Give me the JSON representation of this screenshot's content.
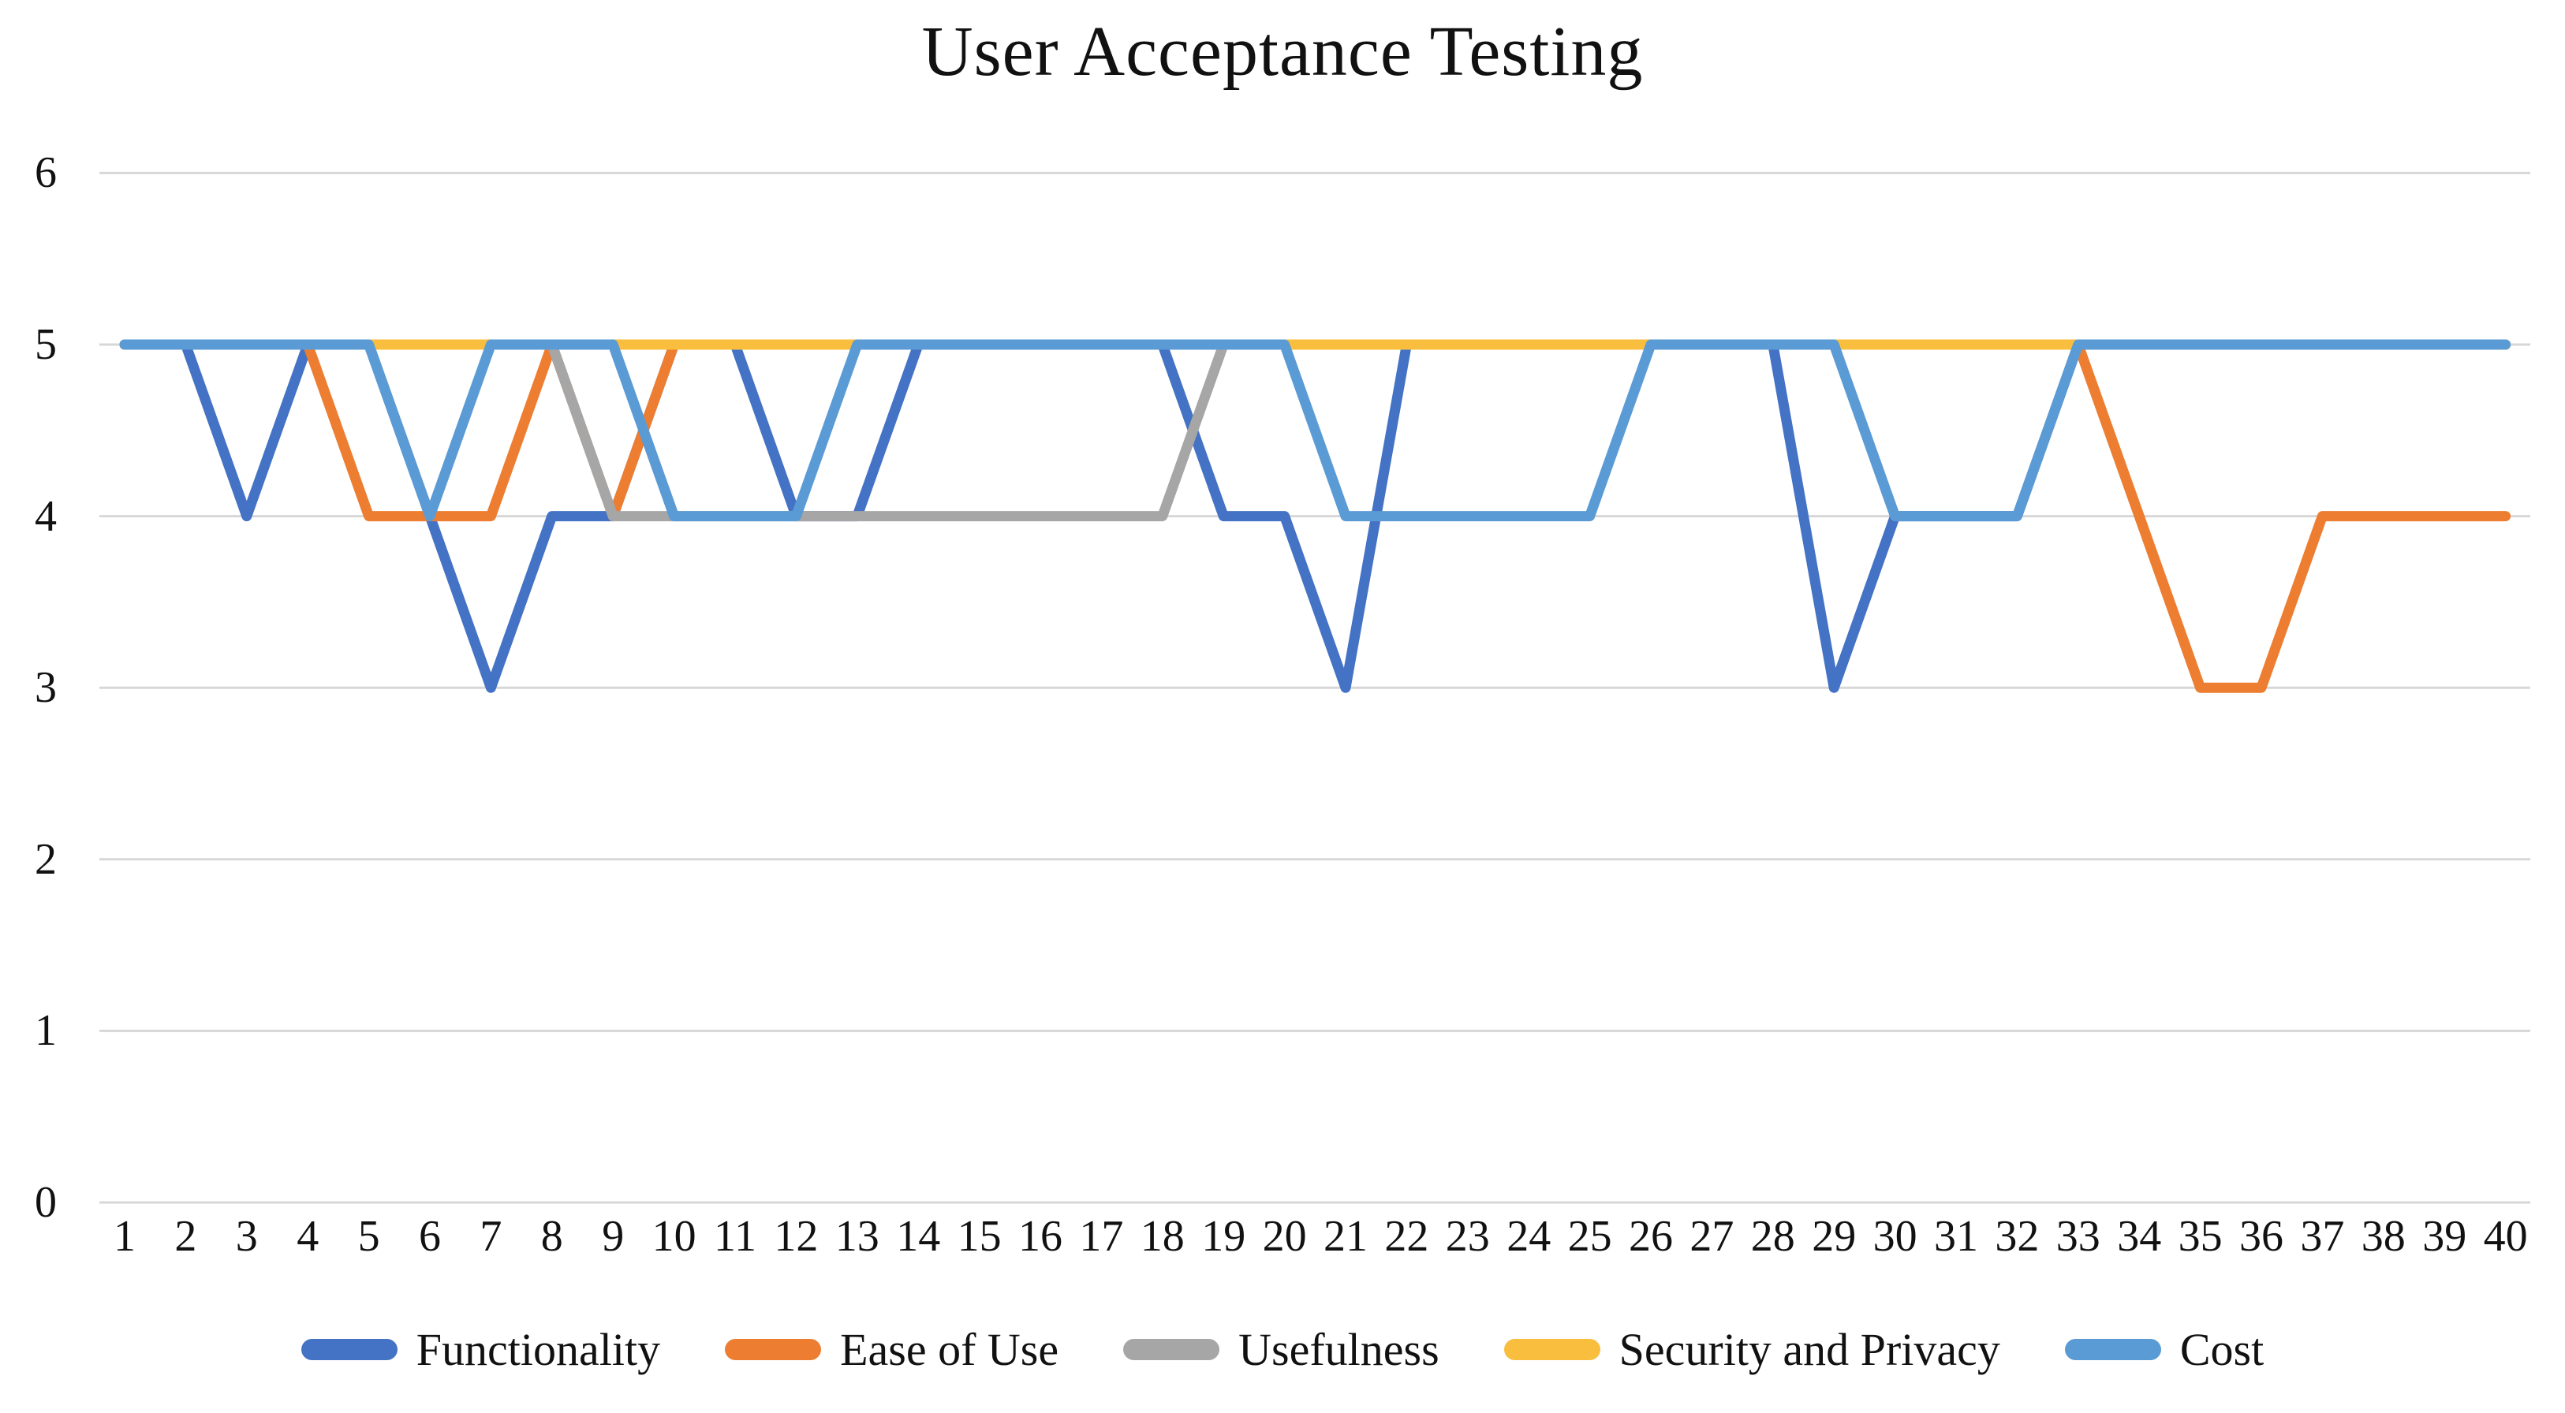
{
  "title": {
    "text": "User Acceptance Testing"
  },
  "y_axis": {
    "tick_labels": [
      "6",
      "5",
      "4",
      "3",
      "2",
      "1",
      "0"
    ],
    "tick_values": [
      6,
      5,
      4,
      3,
      2,
      1,
      0
    ],
    "range": [
      0,
      6
    ]
  },
  "x_axis": {
    "tick_labels": [
      "1",
      "2",
      "3",
      "4",
      "5",
      "6",
      "7",
      "8",
      "9",
      "10",
      "11",
      "12",
      "13",
      "14",
      "15",
      "16",
      "17",
      "18",
      "19",
      "20",
      "21",
      "22",
      "23",
      "24",
      "25",
      "26",
      "27",
      "28",
      "29",
      "30",
      "31",
      "32",
      "33",
      "34",
      "35",
      "36",
      "37",
      "38",
      "39",
      "40"
    ]
  },
  "colors": {
    "gridline": "#D7D7D7",
    "text": "#111111",
    "background": "#FFFFFF"
  },
  "chart_data": {
    "type": "line",
    "title": "User Acceptance Testing",
    "x": [
      1,
      2,
      3,
      4,
      5,
      6,
      7,
      8,
      9,
      10,
      11,
      12,
      13,
      14,
      15,
      16,
      17,
      18,
      19,
      20,
      21,
      22,
      23,
      24,
      25,
      26,
      27,
      28,
      29,
      30,
      31,
      32,
      33,
      34,
      35,
      36,
      37,
      38,
      39,
      40
    ],
    "xlabel": "",
    "ylabel": "",
    "ylim": [
      0,
      6
    ],
    "grid": "horizontal",
    "legend_position": "bottom",
    "series": [
      {
        "name": "Functionality",
        "color": "#4472C4",
        "values": [
          5,
          5,
          4,
          5,
          5,
          4,
          3,
          4,
          4,
          5,
          5,
          4,
          4,
          5,
          5,
          5,
          5,
          5,
          4,
          4,
          3,
          5,
          5,
          5,
          5,
          5,
          5,
          5,
          3,
          4,
          4,
          4,
          5,
          5,
          5,
          5,
          5,
          5,
          5,
          5
        ]
      },
      {
        "name": "Ease of Use",
        "color": "#ED7D31",
        "values": [
          5,
          5,
          5,
          5,
          4,
          4,
          4,
          5,
          4,
          5,
          5,
          5,
          5,
          5,
          5,
          5,
          5,
          5,
          5,
          5,
          5,
          5,
          5,
          5,
          5,
          5,
          5,
          5,
          5,
          5,
          5,
          5,
          5,
          4,
          3,
          3,
          4,
          4,
          4,
          4
        ]
      },
      {
        "name": "Usefulness",
        "color": "#A6A6A6",
        "values": [
          5,
          5,
          5,
          5,
          5,
          5,
          5,
          5,
          4,
          4,
          4,
          4,
          4,
          4,
          4,
          4,
          4,
          4,
          5,
          5,
          5,
          5,
          5,
          5,
          5,
          5,
          5,
          5,
          5,
          5,
          5,
          5,
          5,
          5,
          5,
          5,
          5,
          5,
          5,
          5
        ]
      },
      {
        "name": "Security and Privacy",
        "color": "#F9BE3D",
        "values": [
          5,
          5,
          5,
          5,
          5,
          5,
          5,
          5,
          5,
          5,
          5,
          5,
          5,
          5,
          5,
          5,
          5,
          5,
          5,
          5,
          5,
          5,
          5,
          5,
          5,
          5,
          5,
          5,
          5,
          5,
          5,
          5,
          5,
          5,
          5,
          5,
          5,
          5,
          5,
          5
        ]
      },
      {
        "name": "Cost",
        "color": "#5B9BD5",
        "values": [
          5,
          5,
          5,
          5,
          5,
          4,
          5,
          5,
          5,
          4,
          4,
          4,
          5,
          5,
          5,
          5,
          5,
          5,
          5,
          5,
          4,
          4,
          4,
          4,
          4,
          5,
          5,
          5,
          5,
          4,
          4,
          4,
          5,
          5,
          5,
          5,
          5,
          5,
          5,
          5
        ]
      }
    ]
  }
}
